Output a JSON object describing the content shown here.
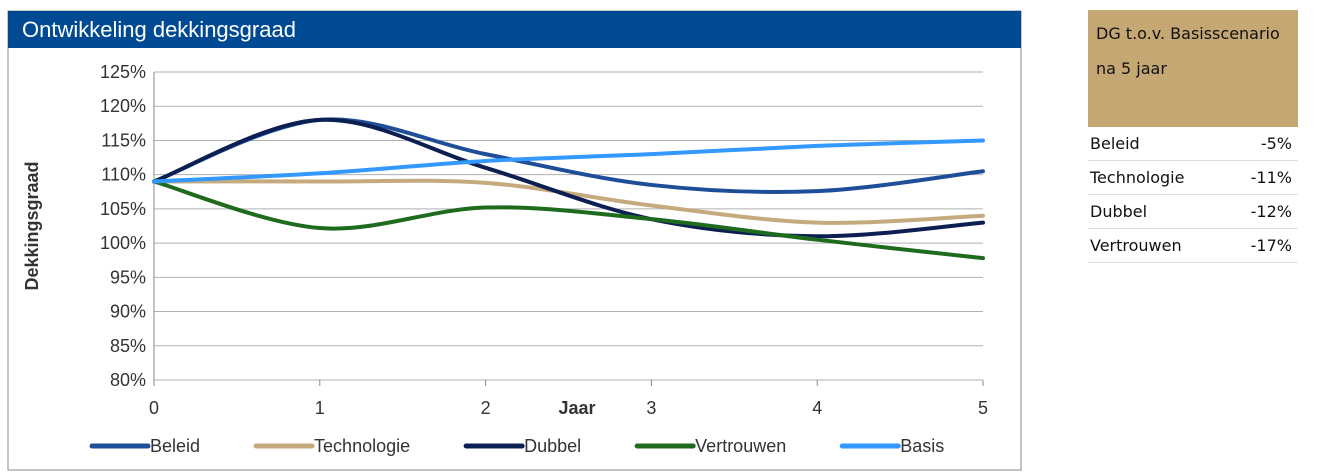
{
  "chart_data": {
    "type": "line",
    "title": "Ontwikkeling dekkingsgraad",
    "x_label": "Jaar",
    "y_label": "Dekkingsgraad",
    "x": [
      0,
      1,
      2,
      3,
      4,
      5
    ],
    "xlim": [
      0,
      5
    ],
    "xticks": [
      0,
      1,
      2,
      3,
      4,
      5
    ],
    "ylim": [
      80,
      125
    ],
    "yticks": [
      {
        "value": 80,
        "label": "80%"
      },
      {
        "value": 85,
        "label": "85%"
      },
      {
        "value": 90,
        "label": "90%"
      },
      {
        "value": 95,
        "label": "95%"
      },
      {
        "value": 100,
        "label": "100%"
      },
      {
        "value": 105,
        "label": "105%"
      },
      {
        "value": 110,
        "label": "110%"
      },
      {
        "value": 115,
        "label": "115%"
      },
      {
        "value": 120,
        "label": "120%"
      },
      {
        "value": 125,
        "label": "125%"
      }
    ],
    "grid": true,
    "legend": "bottom",
    "series": [
      {
        "name": "Beleid",
        "color": "#1f4e99",
        "values": [
          109,
          118,
          113,
          108.5,
          107.6,
          110.5
        ]
      },
      {
        "name": "Technologie",
        "color": "#c4aa7c",
        "values": [
          109,
          109,
          108.8,
          105.5,
          103,
          104
        ]
      },
      {
        "name": "Dubbel",
        "color": "#0c1f52",
        "values": [
          109,
          118,
          111,
          103.5,
          101,
          103
        ]
      },
      {
        "name": "Vertrouwen",
        "color": "#1e6b1e",
        "values": [
          109,
          102.2,
          105.2,
          103.5,
          100.5,
          97.8
        ]
      },
      {
        "name": "Basis",
        "color": "#3399ff",
        "values": [
          109,
          110.2,
          112,
          113,
          114.2,
          115
        ]
      }
    ]
  },
  "table": {
    "header": "DG t.o.v. Basisscenario na 5 jaar",
    "rows": [
      [
        "Beleid",
        "-5%"
      ],
      [
        "Technologie",
        "-11%"
      ],
      [
        "Dubbel",
        "-12%"
      ],
      [
        "Vertrouwen",
        "-17%"
      ]
    ]
  }
}
